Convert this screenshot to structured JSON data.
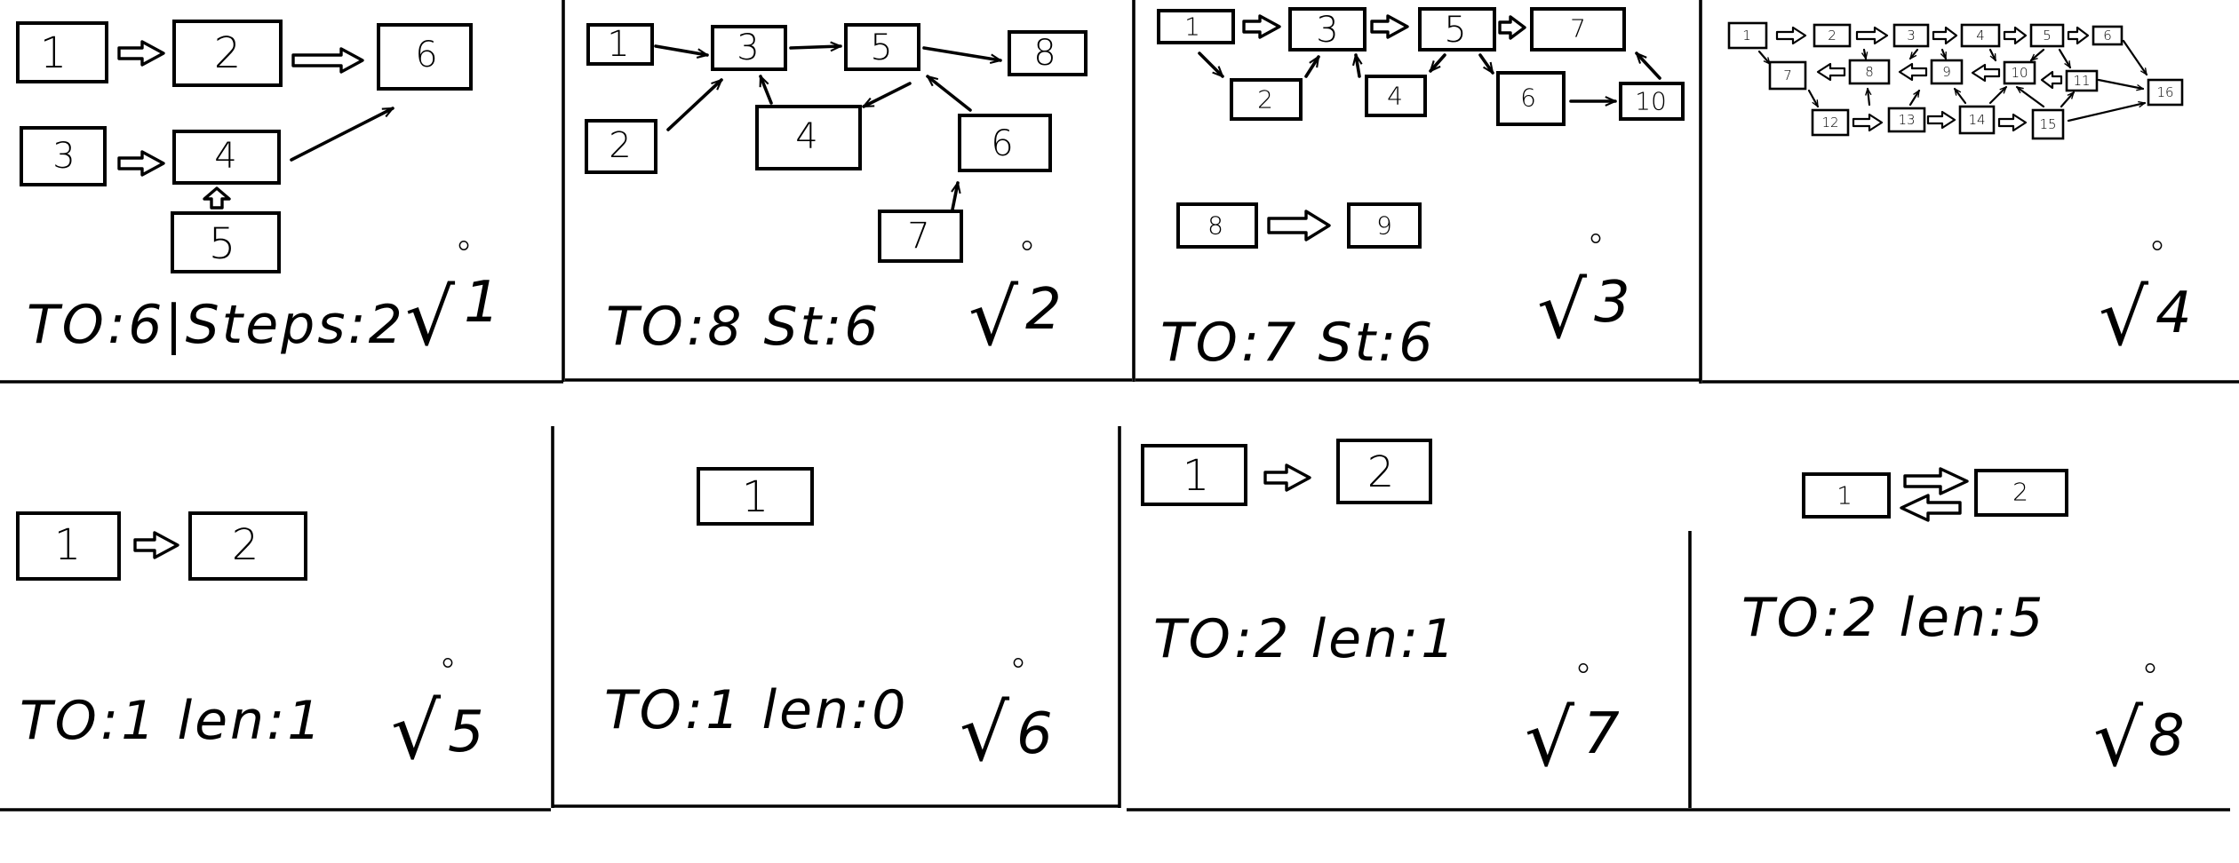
{
  "panels": [
    {
      "id": "1",
      "caption": "TO:6|Steps:2",
      "number_label": "1",
      "nodes": [
        {
          "label": "1"
        },
        {
          "label": "2"
        },
        {
          "label": "6"
        },
        {
          "label": "3"
        },
        {
          "label": "4"
        },
        {
          "label": "5"
        }
      ]
    },
    {
      "id": "2",
      "caption": "TO:8 St:6",
      "number_label": "2",
      "nodes": [
        {
          "label": "1"
        },
        {
          "label": "3"
        },
        {
          "label": "5"
        },
        {
          "label": "8"
        },
        {
          "label": "2"
        },
        {
          "label": "4"
        },
        {
          "label": "6"
        },
        {
          "label": "7"
        }
      ]
    },
    {
      "id": "3",
      "caption": "TO:7 St:6",
      "number_label": "3",
      "nodes": [
        {
          "label": "1"
        },
        {
          "label": "3"
        },
        {
          "label": "5"
        },
        {
          "label": "7"
        },
        {
          "label": "2"
        },
        {
          "label": "4"
        },
        {
          "label": "6"
        },
        {
          "label": "10"
        },
        {
          "label": "8"
        },
        {
          "label": "9"
        }
      ]
    },
    {
      "id": "4",
      "caption": "",
      "number_label": "4",
      "nodes": [
        {
          "label": "1"
        },
        {
          "label": "2"
        },
        {
          "label": "3"
        },
        {
          "label": "4"
        },
        {
          "label": "5"
        },
        {
          "label": "6"
        },
        {
          "label": "7"
        },
        {
          "label": "8"
        },
        {
          "label": "9"
        },
        {
          "label": "10"
        },
        {
          "label": "11"
        },
        {
          "label": "12"
        },
        {
          "label": "13"
        },
        {
          "label": "14"
        },
        {
          "label": "15"
        },
        {
          "label": "16"
        }
      ]
    },
    {
      "id": "5",
      "caption": "TO:1 len:1",
      "number_label": "5",
      "nodes": [
        {
          "label": "1"
        },
        {
          "label": "2"
        }
      ]
    },
    {
      "id": "6",
      "caption": "TO:1 len:0",
      "number_label": "6",
      "nodes": [
        {
          "label": "1"
        }
      ]
    },
    {
      "id": "7",
      "caption": "TO:2 len:1",
      "number_label": "7",
      "nodes": [
        {
          "label": "1"
        },
        {
          "label": "2"
        }
      ]
    },
    {
      "id": "8",
      "caption": "TO:2 len:5",
      "number_label": "8",
      "nodes": [
        {
          "label": "1"
        },
        {
          "label": "2"
        }
      ]
    }
  ]
}
